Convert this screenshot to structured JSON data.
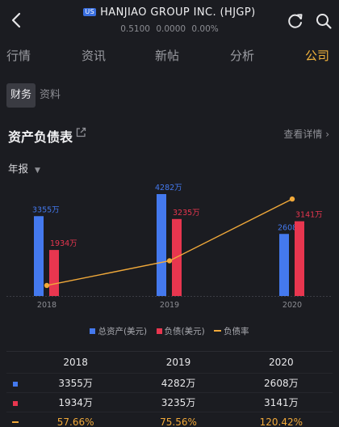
{
  "header": {
    "market_badge": "US",
    "title": "HANJIAO GROUP INC. (HJGP)",
    "price": "0.5100",
    "change": "0.0000",
    "change_pct": "0.00%"
  },
  "nav": {
    "tabs": [
      {
        "label": "行情",
        "active": false
      },
      {
        "label": "资讯",
        "active": false
      },
      {
        "label": "新帖",
        "active": false
      },
      {
        "label": "分析",
        "active": false
      },
      {
        "label": "公司",
        "active": true
      }
    ]
  },
  "segmented": {
    "items": [
      {
        "label": "财务",
        "active": true
      },
      {
        "label": "资料",
        "active": false
      }
    ]
  },
  "section": {
    "title": "资产负债表",
    "view_more": "查看详情",
    "period": "年报"
  },
  "chart_data": {
    "type": "bar",
    "categories": [
      "2018",
      "2019",
      "2020"
    ],
    "series": [
      {
        "name": "总资产(美元)",
        "values": [
          3355,
          4282,
          2608
        ],
        "labels": [
          "3355万",
          "4282万",
          "2608万"
        ],
        "color": "#4479ee"
      },
      {
        "name": "负债(美元)",
        "values": [
          1934,
          3235,
          3141
        ],
        "labels": [
          "1934万",
          "3235万",
          "3141万"
        ],
        "color": "#e8364f"
      },
      {
        "name": "负债率",
        "type": "line",
        "values": [
          57.66,
          75.56,
          120.42
        ],
        "color": "#f1a93a"
      }
    ],
    "ylim": [
      0,
      4282
    ],
    "line_ylim": [
      50,
      124
    ],
    "grid": false,
    "legend": "bottom"
  },
  "legend": {
    "assets": "总资产(美元)",
    "liabilities": "负债(美元)",
    "ratio": "负债率"
  },
  "table": {
    "years": [
      "2018",
      "2019",
      "2020"
    ],
    "rows": [
      {
        "color": "#4479ee",
        "kind": "square",
        "values": [
          "3355万",
          "4282万",
          "2608万"
        ]
      },
      {
        "color": "#e8364f",
        "kind": "square",
        "values": [
          "1934万",
          "3235万",
          "3141万"
        ]
      },
      {
        "color": "#f1a93a",
        "kind": "line",
        "values": [
          "57.66%",
          "75.56%",
          "120.42%"
        ]
      }
    ]
  },
  "colors": {
    "accent": "#f2b33c",
    "assets": "#4479ee",
    "liabilities": "#e8364f",
    "ratio": "#f1a93a"
  }
}
